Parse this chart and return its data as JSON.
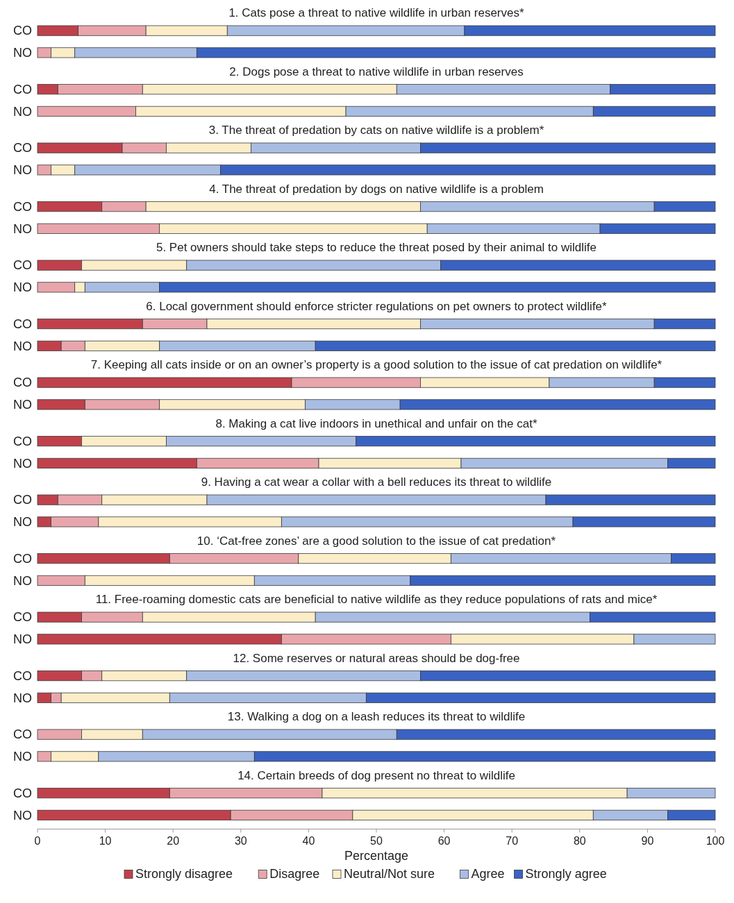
{
  "chart_data": [
    {
      "type": "bar",
      "orientation": "horizontal",
      "stacked": true,
      "title": "1. Cats pose a threat to native wildlife in urban reserves*",
      "categories": [
        "CO",
        "NO"
      ],
      "xlim": [
        0,
        100
      ],
      "tick_labels": "y",
      "series": [
        {
          "color": "#c0414b",
          "values": [
            6,
            0
          ]
        },
        {
          "color": "#e8a6ac",
          "values": [
            10,
            2
          ]
        },
        {
          "color": "#fbedc8",
          "values": [
            12,
            3.5
          ]
        },
        {
          "color": "#a9bde3",
          "values": [
            35,
            18
          ]
        },
        {
          "color": "#3a62c2",
          "values": [
            37,
            76.5
          ]
        }
      ]
    },
    {
      "type": "bar",
      "orientation": "horizontal",
      "stacked": true,
      "title": "2. Dogs pose a threat to native wildlife in urban reserves",
      "categories": [
        "CO",
        "NO"
      ],
      "xlim": [
        0,
        100
      ],
      "tick_labels": "y",
      "series": [
        {
          "color": "#c0414b",
          "values": [
            3,
            0
          ]
        },
        {
          "color": "#e8a6ac",
          "values": [
            12.5,
            14.5
          ]
        },
        {
          "color": "#fbedc8",
          "values": [
            37.5,
            31
          ]
        },
        {
          "color": "#a9bde3",
          "values": [
            31.5,
            36.5
          ]
        },
        {
          "color": "#3a62c2",
          "values": [
            15.5,
            18
          ]
        }
      ]
    },
    {
      "type": "bar",
      "orientation": "horizontal",
      "stacked": true,
      "title": "3. The threat of predation by cats on native wildlife is a problem*",
      "categories": [
        "CO",
        "NO"
      ],
      "xlim": [
        0,
        100
      ],
      "tick_labels": "y",
      "series": [
        {
          "color": "#c0414b",
          "values": [
            12.5,
            0
          ]
        },
        {
          "color": "#e8a6ac",
          "values": [
            6.5,
            2
          ]
        },
        {
          "color": "#fbedc8",
          "values": [
            12.5,
            3.5
          ]
        },
        {
          "color": "#a9bde3",
          "values": [
            25,
            21.5
          ]
        },
        {
          "color": "#3a62c2",
          "values": [
            43.5,
            73
          ]
        }
      ]
    },
    {
      "type": "bar",
      "orientation": "horizontal",
      "stacked": true,
      "title": "4. The threat of predation by dogs on native wildlife is a problem",
      "categories": [
        "CO",
        "NO"
      ],
      "xlim": [
        0,
        100
      ],
      "tick_labels": "y",
      "series": [
        {
          "color": "#c0414b",
          "values": [
            9.5,
            0
          ]
        },
        {
          "color": "#e8a6ac",
          "values": [
            6.5,
            18
          ]
        },
        {
          "color": "#fbedc8",
          "values": [
            40.5,
            39.5
          ]
        },
        {
          "color": "#a9bde3",
          "values": [
            34.5,
            25.5
          ]
        },
        {
          "color": "#3a62c2",
          "values": [
            9,
            17
          ]
        }
      ]
    },
    {
      "type": "bar",
      "orientation": "horizontal",
      "stacked": true,
      "title": "5. Pet owners should take steps to reduce the threat posed by their animal to wildlife",
      "categories": [
        "CO",
        "NO"
      ],
      "xlim": [
        0,
        100
      ],
      "tick_labels": "y",
      "series": [
        {
          "color": "#c0414b",
          "values": [
            6.5,
            0
          ]
        },
        {
          "color": "#e8a6ac",
          "values": [
            0,
            5.5
          ]
        },
        {
          "color": "#fbedc8",
          "values": [
            15.5,
            1.5
          ]
        },
        {
          "color": "#a9bde3",
          "values": [
            37.5,
            11
          ]
        },
        {
          "color": "#3a62c2",
          "values": [
            40.5,
            82
          ]
        }
      ]
    },
    {
      "type": "bar",
      "orientation": "horizontal",
      "stacked": true,
      "title": "6. Local government should enforce stricter regulations on pet owners to protect wildlife*",
      "categories": [
        "CO",
        "NO"
      ],
      "xlim": [
        0,
        100
      ],
      "tick_labels": "y",
      "series": [
        {
          "color": "#c0414b",
          "values": [
            15.5,
            3.5
          ]
        },
        {
          "color": "#e8a6ac",
          "values": [
            9.5,
            3.5
          ]
        },
        {
          "color": "#fbedc8",
          "values": [
            31.5,
            11
          ]
        },
        {
          "color": "#a9bde3",
          "values": [
            34.5,
            23
          ]
        },
        {
          "color": "#3a62c2",
          "values": [
            9,
            59
          ]
        }
      ]
    },
    {
      "type": "bar",
      "orientation": "horizontal",
      "stacked": true,
      "title": "7. Keeping all cats inside or on an owner’s property is a good solution to the issue of cat predation on wildlife*",
      "categories": [
        "CO",
        "NO"
      ],
      "xlim": [
        0,
        100
      ],
      "tick_labels": "y",
      "series": [
        {
          "color": "#c0414b",
          "values": [
            37.5,
            7
          ]
        },
        {
          "color": "#e8a6ac",
          "values": [
            19,
            11
          ]
        },
        {
          "color": "#fbedc8",
          "values": [
            19,
            21.5
          ]
        },
        {
          "color": "#a9bde3",
          "values": [
            15.5,
            14
          ]
        },
        {
          "color": "#3a62c2",
          "values": [
            9,
            46.5
          ]
        }
      ]
    },
    {
      "type": "bar",
      "orientation": "horizontal",
      "stacked": true,
      "title": "8. Making a cat live indoors in unethical and unfair on the cat*",
      "categories": [
        "CO",
        "NO"
      ],
      "xlim": [
        0,
        100
      ],
      "tick_labels": "y",
      "series": [
        {
          "color": "#c0414b",
          "values": [
            6.5,
            23.5
          ]
        },
        {
          "color": "#e8a6ac",
          "values": [
            0,
            18
          ]
        },
        {
          "color": "#fbedc8",
          "values": [
            12.5,
            21
          ]
        },
        {
          "color": "#a9bde3",
          "values": [
            28,
            30.5
          ]
        },
        {
          "color": "#3a62c2",
          "values": [
            53,
            7
          ]
        }
      ]
    },
    {
      "type": "bar",
      "orientation": "horizontal",
      "stacked": true,
      "title": "9. Having a cat wear a collar with a bell reduces its threat to wildlife",
      "categories": [
        "CO",
        "NO"
      ],
      "xlim": [
        0,
        100
      ],
      "tick_labels": "y",
      "series": [
        {
          "color": "#c0414b",
          "values": [
            3,
            2
          ]
        },
        {
          "color": "#e8a6ac",
          "values": [
            6.5,
            7
          ]
        },
        {
          "color": "#fbedc8",
          "values": [
            15.5,
            27
          ]
        },
        {
          "color": "#a9bde3",
          "values": [
            50,
            43
          ]
        },
        {
          "color": "#3a62c2",
          "values": [
            25,
            21
          ]
        }
      ]
    },
    {
      "type": "bar",
      "orientation": "horizontal",
      "stacked": true,
      "title": "10. ‘Cat-free zones’ are a good solution to the issue of cat predation*",
      "categories": [
        "CO",
        "NO"
      ],
      "xlim": [
        0,
        100
      ],
      "tick_labels": "y",
      "series": [
        {
          "color": "#c0414b",
          "values": [
            19.5,
            0
          ]
        },
        {
          "color": "#e8a6ac",
          "values": [
            19,
            7
          ]
        },
        {
          "color": "#fbedc8",
          "values": [
            22.5,
            25
          ]
        },
        {
          "color": "#a9bde3",
          "values": [
            32.5,
            23
          ]
        },
        {
          "color": "#3a62c2",
          "values": [
            6.5,
            45
          ]
        }
      ]
    },
    {
      "type": "bar",
      "orientation": "horizontal",
      "stacked": true,
      "title": "11. Free-roaming domestic cats are beneficial to native wildlife as they reduce populations of rats and mice*",
      "categories": [
        "CO",
        "NO"
      ],
      "xlim": [
        0,
        100
      ],
      "tick_labels": "y",
      "series": [
        {
          "color": "#c0414b",
          "values": [
            6.5,
            36
          ]
        },
        {
          "color": "#e8a6ac",
          "values": [
            9,
            25
          ]
        },
        {
          "color": "#fbedc8",
          "values": [
            25.5,
            27
          ]
        },
        {
          "color": "#a9bde3",
          "values": [
            40.5,
            12
          ]
        },
        {
          "color": "#3a62c2",
          "values": [
            18.5,
            0
          ]
        }
      ]
    },
    {
      "type": "bar",
      "orientation": "horizontal",
      "stacked": true,
      "title": "12. Some reserves or natural areas should be dog-free",
      "categories": [
        "CO",
        "NO"
      ],
      "xlim": [
        0,
        100
      ],
      "tick_labels": "y",
      "series": [
        {
          "color": "#c0414b",
          "values": [
            6.5,
            2
          ]
        },
        {
          "color": "#e8a6ac",
          "values": [
            3,
            1.5
          ]
        },
        {
          "color": "#fbedc8",
          "values": [
            12.5,
            16
          ]
        },
        {
          "color": "#a9bde3",
          "values": [
            34.5,
            29
          ]
        },
        {
          "color": "#3a62c2",
          "values": [
            43.5,
            51.5
          ]
        }
      ]
    },
    {
      "type": "bar",
      "orientation": "horizontal",
      "stacked": true,
      "title": "13. Walking a dog on a leash reduces its threat to wildlife",
      "categories": [
        "CO",
        "NO"
      ],
      "xlim": [
        0,
        100
      ],
      "tick_labels": "y",
      "series": [
        {
          "color": "#c0414b",
          "values": [
            0,
            0
          ]
        },
        {
          "color": "#e8a6ac",
          "values": [
            6.5,
            2
          ]
        },
        {
          "color": "#fbedc8",
          "values": [
            9,
            7
          ]
        },
        {
          "color": "#a9bde3",
          "values": [
            37.5,
            23
          ]
        },
        {
          "color": "#3a62c2",
          "values": [
            47,
            68
          ]
        }
      ]
    },
    {
      "type": "bar",
      "orientation": "horizontal",
      "stacked": true,
      "title": "14. Certain breeds of dog present no threat to wildlife",
      "categories": [
        "CO",
        "NO"
      ],
      "xlim": [
        0,
        100
      ],
      "xticks": [
        0,
        10,
        20,
        30,
        40,
        50,
        60,
        70,
        80,
        90,
        100
      ],
      "xlabel": "Percentage",
      "legend": "bottom",
      "series": [
        {
          "name": "Strongly disagree",
          "color": "#c0414b",
          "values": [
            19.5,
            28.5
          ]
        },
        {
          "name": "Disagree",
          "color": "#e8a6ac",
          "values": [
            22.5,
            18
          ]
        },
        {
          "name": "Neutral/Not sure",
          "color": "#fbedc8",
          "values": [
            45,
            35.5
          ]
        },
        {
          "name": "Agree",
          "color": "#a9bde3",
          "values": [
            13,
            11
          ]
        },
        {
          "name": "Strongly agree",
          "color": "#3a62c2",
          "values": [
            0,
            7
          ]
        }
      ]
    }
  ]
}
